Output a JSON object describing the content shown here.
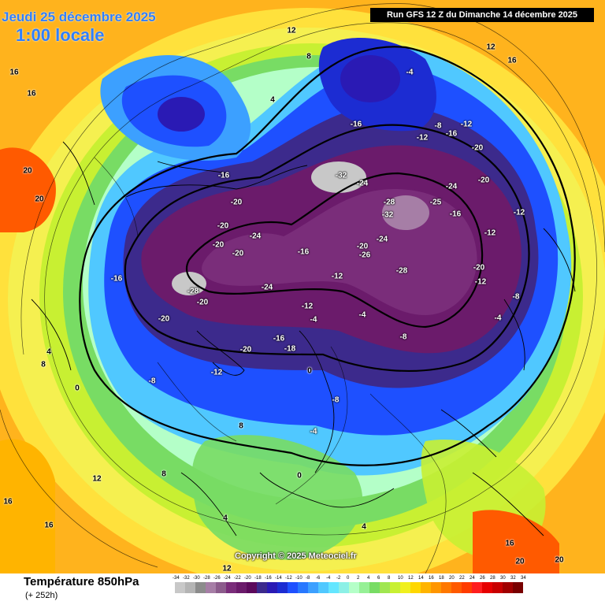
{
  "header": {
    "date_line": "Jeudi 25 décembre 2025",
    "time_line": "1:00 locale",
    "run_info": "Run GFS 12 Z du Dimanche 14 décembre 2025"
  },
  "map": {
    "copyright": "Copyright © 2025 Meteociel.fr",
    "isotherm_labels": [
      "-32",
      "-28",
      "-26",
      "-25",
      "-24",
      "-20",
      "-18",
      "-16",
      "-12",
      "-8",
      "-4",
      "0",
      "4",
      "8",
      "12",
      "16",
      "20"
    ]
  },
  "footer": {
    "parameter": "Température 850hPa",
    "forecast_hours": "(+ 252h)"
  },
  "legend": {
    "ticks": [
      "-34",
      "-32",
      "-30",
      "-28",
      "-26",
      "-24",
      "-22",
      "-20",
      "-18",
      "-16",
      "-14",
      "-12",
      "-10",
      "-8",
      "-6",
      "-4",
      "-2",
      "0",
      "2",
      "4",
      "6",
      "8",
      "10",
      "12",
      "14",
      "16",
      "18",
      "20",
      "22",
      "24",
      "26",
      "28",
      "30",
      "32",
      "34"
    ],
    "colors": [
      "#c8c8c8",
      "#b4b4b4",
      "#8c8c8c",
      "#a67ea6",
      "#8c5c8c",
      "#7a2d7a",
      "#6b1b6b",
      "#5c0a5c",
      "#3c2a8c",
      "#2a1ab4",
      "#1c2cd2",
      "#1e50ff",
      "#2878ff",
      "#3ca0ff",
      "#50c8ff",
      "#64e6ff",
      "#8cf0e6",
      "#b4ffc8",
      "#96f096",
      "#78dc64",
      "#a0e650",
      "#c8f032",
      "#f0f01e",
      "#ffd700",
      "#ffb400",
      "#ff9600",
      "#ff7800",
      "#ff5a00",
      "#ff3c00",
      "#ff1e1e",
      "#e60000",
      "#c80000",
      "#a00000",
      "#780000"
    ]
  }
}
